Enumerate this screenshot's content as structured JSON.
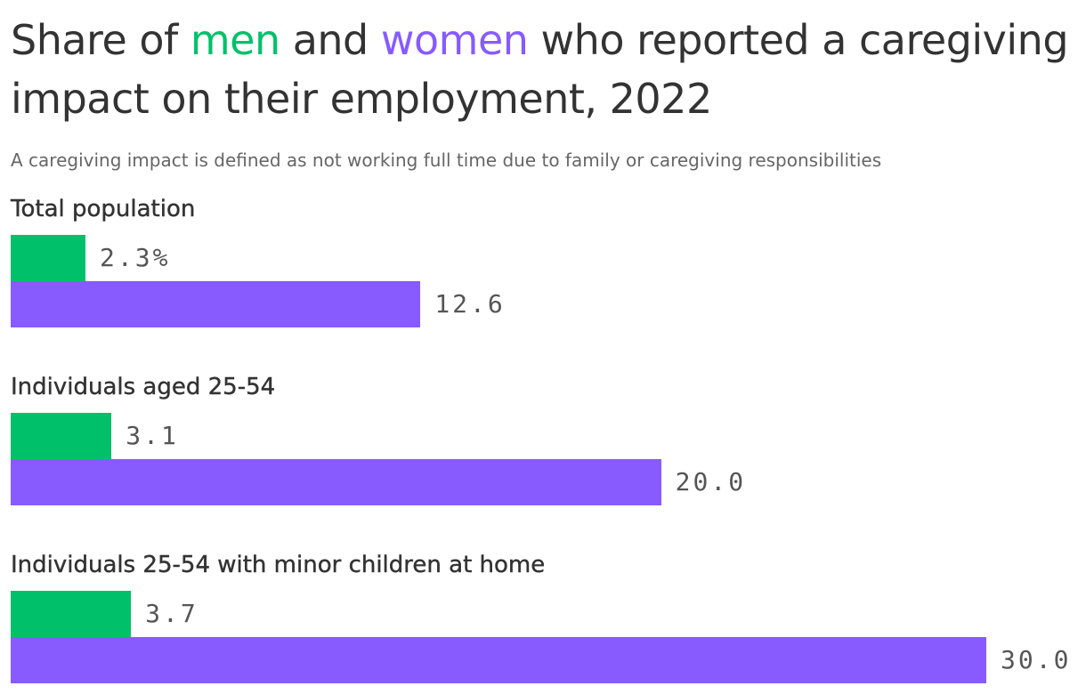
{
  "title": {
    "prefix": "Share of ",
    "men": "men",
    "middle": " and ",
    "women": "women",
    "suffix": " who reported a caregiving impact on their employment, 2022"
  },
  "subtitle": "A caregiving impact is defined as not working full time due to family or caregiving responsibilities",
  "colors": {
    "men": "#00c16a",
    "women": "#875bff",
    "text": "#333333",
    "label": "#555555"
  },
  "chart_data": {
    "type": "bar",
    "orientation": "horizontal",
    "title": "Share of men and women who reported a caregiving impact on their employment, 2022",
    "subtitle": "A caregiving impact is defined as not working full time due to family or caregiving responsibilities",
    "categories": [
      "Total population",
      "Individuals aged 25-54",
      "Individuals 25-54 with minor children at home"
    ],
    "series": [
      {
        "name": "men",
        "color": "#00c16a",
        "values": [
          2.3,
          3.1,
          3.7
        ],
        "labels": [
          "2.3%",
          "3.1",
          "3.7"
        ]
      },
      {
        "name": "women",
        "color": "#875bff",
        "values": [
          12.6,
          20.0,
          30.0
        ],
        "labels": [
          "12.6",
          "20.0",
          "30.0"
        ]
      }
    ],
    "unit": "%",
    "xlim": [
      0,
      30
    ],
    "xlabel": "",
    "ylabel": "",
    "grid": false,
    "legend": "colored words in title"
  }
}
